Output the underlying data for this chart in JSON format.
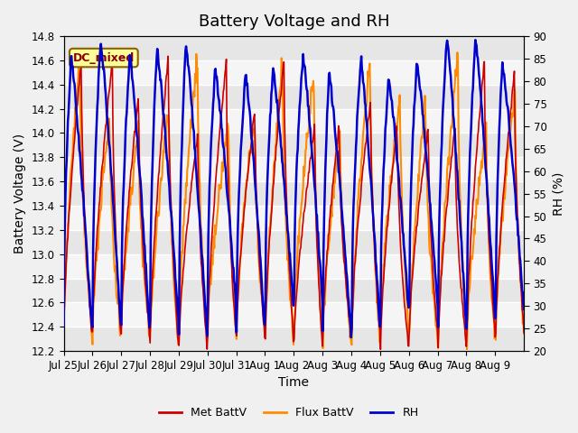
{
  "title": "Battery Voltage and RH",
  "xlabel": "Time",
  "ylabel_left": "Battery Voltage (V)",
  "ylabel_right": "RH (%)",
  "annotation_text": "DC_mixed",
  "annotation_color": "#8B0000",
  "annotation_bg": "#FFFF99",
  "annotation_border": "#8B6000",
  "ylim_left": [
    12.2,
    14.8
  ],
  "ylim_right": [
    20,
    90
  ],
  "yticks_left": [
    12.2,
    12.4,
    12.6,
    12.8,
    13.0,
    13.2,
    13.4,
    13.6,
    13.8,
    14.0,
    14.2,
    14.4,
    14.6,
    14.8
  ],
  "yticks_right": [
    20,
    25,
    30,
    35,
    40,
    45,
    50,
    55,
    60,
    65,
    70,
    75,
    80,
    85,
    90
  ],
  "xtick_labels": [
    "Jul 25",
    "Jul 26",
    "Jul 27",
    "Jul 28",
    "Jul 29",
    "Jul 30",
    "Jul 31",
    "Aug 1",
    "Aug 2",
    "Aug 3",
    "Aug 4",
    "Aug 5",
    "Aug 6",
    "Aug 7",
    "Aug 8",
    "Aug 9"
  ],
  "series_colors": {
    "met": "#CC0000",
    "flux": "#FF8C00",
    "rh": "#0000CC"
  },
  "series_linewidths": {
    "met": 1.2,
    "flux": 1.5,
    "rh": 1.8
  },
  "legend_labels": [
    "Met BattV",
    "Flux BattV",
    "RH"
  ],
  "fig_bg_color": "#F0F0F0",
  "plot_bg_color": "#F5F5F5",
  "grid_color": "#FFFFFF",
  "band_color": "#DCDCDC",
  "title_fontsize": 13,
  "axis_label_fontsize": 10,
  "tick_fontsize": 8.5,
  "n_days": 16,
  "pts_per_day": 48
}
